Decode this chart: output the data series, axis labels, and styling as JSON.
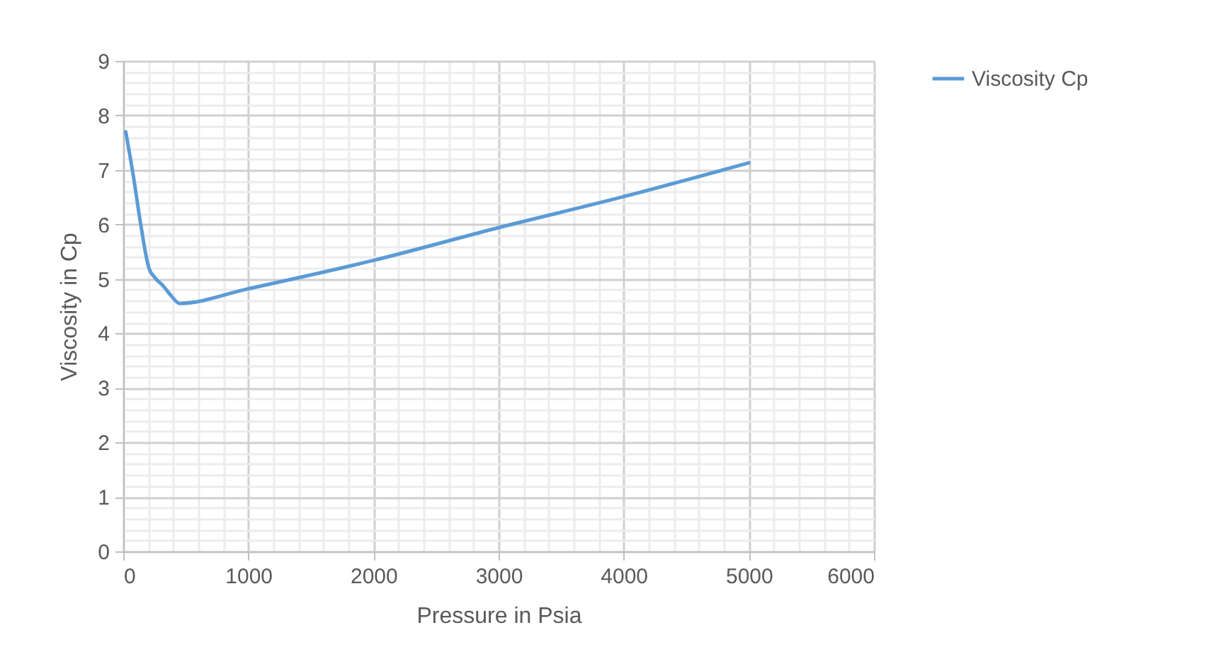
{
  "chart_data": {
    "type": "line",
    "xlabel": "Pressure in Psia",
    "ylabel": "Viscosity in Cp",
    "x": [
      20,
      80,
      135,
      205,
      250,
      320,
      380,
      450,
      1000,
      2000,
      3000,
      4000,
      5000
    ],
    "series": [
      {
        "name": "Viscosity Cp",
        "color": "#5b9bd5",
        "values": [
          7.7,
          6.9,
          6.07,
          5.2,
          5.03,
          4.87,
          4.7,
          4.55,
          4.82,
          5.34,
          5.94,
          6.51,
          7.13
        ]
      }
    ],
    "xlim": [
      0,
      6000
    ],
    "xticks": [
      0,
      {
        "value": 200,
        "label": null
      },
      {
        "value": 400,
        "label": null
      },
      {
        "value": 600,
        "label": null
      },
      {
        "value": 800,
        "label": null
      },
      1000,
      {
        "value": 1200,
        "label": null
      },
      {
        "value": 1400,
        "label": null
      },
      {
        "value": 1600,
        "label": null
      },
      {
        "value": 1800,
        "label": null
      },
      2000,
      {
        "value": 2200,
        "label": null
      },
      {
        "value": 2400,
        "label": null
      },
      {
        "value": 2600,
        "label": null
      },
      {
        "value": 2800,
        "label": null
      },
      3000,
      {
        "value": 3200,
        "label": null
      },
      {
        "value": 3400,
        "label": null
      },
      {
        "value": 3600,
        "label": null
      },
      {
        "value": 3800,
        "label": null
      },
      4000,
      {
        "value": 4200,
        "label": null
      },
      {
        "value": 4400,
        "label": null
      },
      {
        "value": 4600,
        "label": null
      },
      {
        "value": 4800,
        "label": null
      },
      5000,
      {
        "value": 5200,
        "label": null
      },
      {
        "value": 5400,
        "label": null
      },
      {
        "value": 5600,
        "label": null
      },
      {
        "value": 5800,
        "label": null
      },
      6000
    ],
    "ylim": [
      0,
      9
    ],
    "yticks": [
      0,
      {
        "value": 0.2,
        "label": null
      },
      {
        "value": 0.4,
        "label": null
      },
      {
        "value": 0.6,
        "label": null
      },
      {
        "value": 0.8,
        "label": null
      },
      1,
      {
        "value": 1.2,
        "label": null
      },
      {
        "value": 1.4,
        "label": null
      },
      {
        "value": 1.6,
        "label": null
      },
      {
        "value": 1.8,
        "label": null
      },
      2,
      {
        "value": 2.2,
        "label": null
      },
      {
        "value": 2.4,
        "label": null
      },
      {
        "value": 2.6,
        "label": null
      },
      {
        "value": 2.8,
        "label": null
      },
      3,
      {
        "value": 3.2,
        "label": null
      },
      {
        "value": 3.4,
        "label": null
      },
      {
        "value": 3.6,
        "label": null
      },
      {
        "value": 3.8,
        "label": null
      },
      4,
      {
        "value": 4.2,
        "label": null
      },
      {
        "value": 4.4,
        "label": null
      },
      {
        "value": 4.6,
        "label": null
      },
      {
        "value": 4.8,
        "label": null
      },
      5,
      {
        "value": 5.2,
        "label": null
      },
      {
        "value": 5.4,
        "label": null
      },
      {
        "value": 5.6,
        "label": null
      },
      {
        "value": 5.8,
        "label": null
      },
      6,
      {
        "value": 6.2,
        "label": null
      },
      {
        "value": 6.4,
        "label": null
      },
      {
        "value": 6.6,
        "label": null
      },
      {
        "value": 6.8,
        "label": null
      },
      7,
      {
        "value": 7.2,
        "label": null
      },
      {
        "value": 7.4,
        "label": null
      },
      {
        "value": 7.6,
        "label": null
      },
      {
        "value": 7.8,
        "label": null
      },
      8,
      {
        "value": 8.2,
        "label": null
      },
      {
        "value": 8.4,
        "label": null
      },
      {
        "value": 8.6,
        "label": null
      },
      {
        "value": 8.8,
        "label": null
      },
      9
    ],
    "grid": true,
    "legend": "right",
    "marker": "none",
    "line_style": "solid"
  }
}
